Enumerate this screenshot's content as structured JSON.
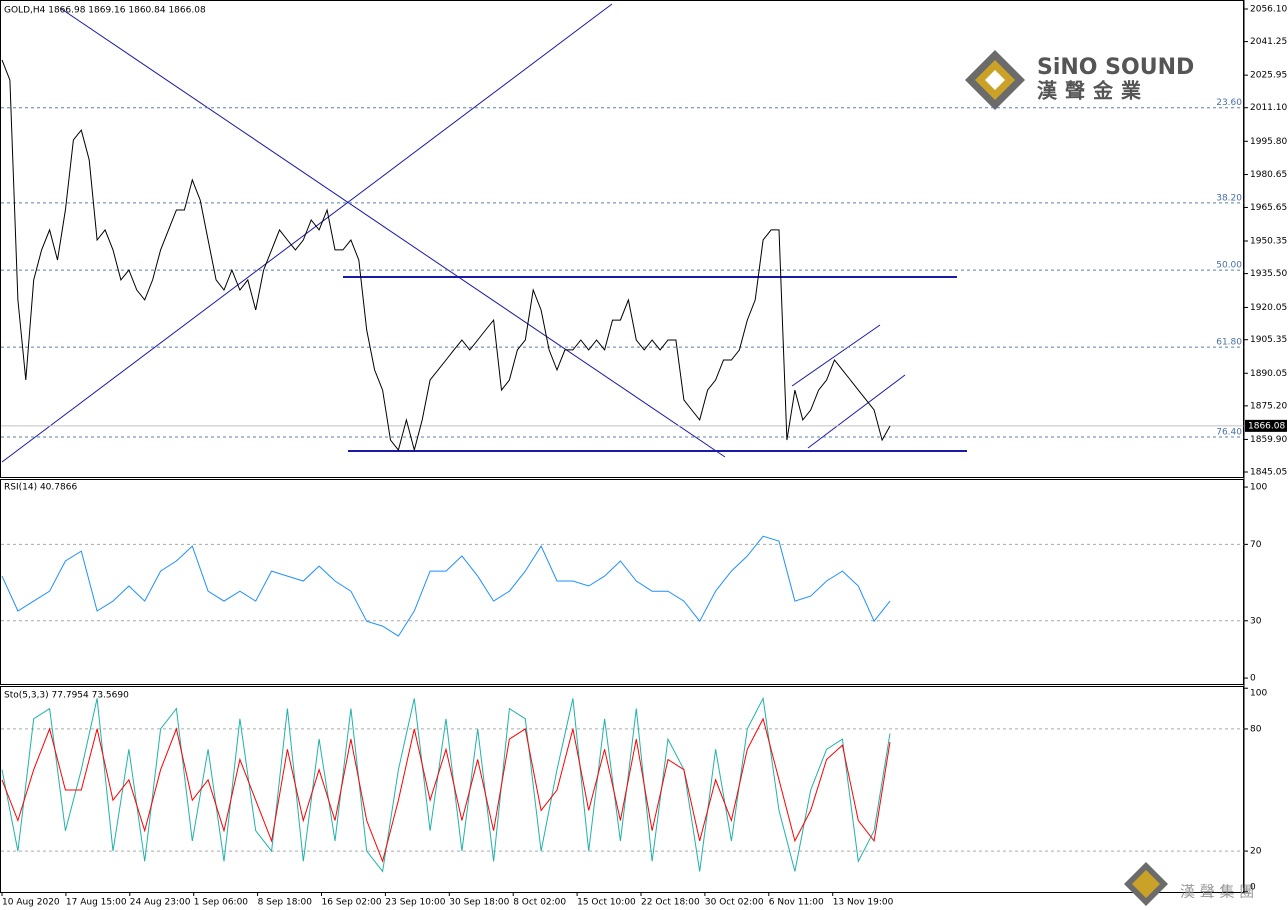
{
  "header": {
    "brand": "SiNO SOUND",
    "brand_cn": "漢聲金業",
    "footer_cn": "漢 聲 集 團"
  },
  "x_axis": {
    "labels": [
      "10 Aug 2020",
      "17 Aug 15:00",
      "24 Aug 23:00",
      "1 Sep 06:00",
      "8 Sep 18:00",
      "16 Sep 02:00",
      "23 Sep 10:00",
      "30 Sep 18:00",
      "8 Oct 02:00",
      "15 Oct 10:00",
      "22 Oct 18:00",
      "30 Oct 02:00",
      "6 Nov 11:00",
      "13 Nov 19:00"
    ]
  },
  "chart_data": [
    {
      "type": "line",
      "title": "GOLD,H4  1866.98 1869.16 1860.84 1866.08",
      "ylim": [
        1842.77,
        2059.75
      ],
      "yticks": [
        {
          "value": 2056.1,
          "label": "2056.10"
        },
        2041.25,
        2025.95,
        {
          "value": 2011.1,
          "label": "2011.10"
        },
        {
          "value": 1995.8,
          "label": "1995.80"
        },
        1980.65,
        1965.65,
        1950.35,
        {
          "value": 1935.5,
          "label": "1935.50"
        },
        1920.05,
        1905.35,
        1890.05,
        {
          "value": 1875.2,
          "label": "1875.20"
        },
        {
          "value": 1859.9,
          "label": "1859.90"
        },
        1845.05
      ],
      "levels": [
        {
          "value": 2011.1,
          "label": "23.60"
        },
        {
          "value": 1967.7,
          "label": "38.20"
        },
        {
          "value": 1937.1,
          "label": "50.00"
        },
        {
          "value": 1902.0,
          "label": "61.80"
        },
        {
          "value": 1861.0,
          "label": "76.40"
        }
      ],
      "last_price": 1866.08,
      "series": [
        {
          "name": "GOLD,H4",
          "color": "#000000",
          "values": [
            2032.9,
            2023.7,
            1923.5,
            1887.0,
            1932.6,
            1946.3,
            1955.4,
            1941.7,
            1964.5,
            1996.4,
            2000.9,
            1987.3,
            1950.8,
            1955.4,
            1946.3,
            1932.6,
            1937.1,
            1928.0,
            1923.5,
            1932.6,
            1946.3,
            1955.4,
            1964.5,
            1964.5,
            1978.2,
            1969.0,
            1950.8,
            1932.6,
            1928.0,
            1937.1,
            1928.0,
            1932.6,
            1918.9,
            1937.1,
            1946.3,
            1955.4,
            1950.8,
            1946.3,
            1950.8,
            1959.9,
            1955.4,
            1964.5,
            1946.3,
            1946.3,
            1950.8,
            1941.7,
            1909.8,
            1891.6,
            1882.4,
            1859.6,
            1855.1,
            1868.8,
            1855.1,
            1868.8,
            1887.0,
            1891.6,
            1896.1,
            1900.7,
            1905.2,
            1900.7,
            1905.2,
            1909.8,
            1914.3,
            1882.4,
            1887.0,
            1900.7,
            1905.2,
            1928.0,
            1918.9,
            1900.7,
            1891.6,
            1900.7,
            1900.7,
            1905.2,
            1900.7,
            1905.2,
            1900.7,
            1914.3,
            1914.3,
            1923.5,
            1905.2,
            1900.7,
            1905.2,
            1900.7,
            1905.2,
            1905.2,
            1877.9,
            1873.3,
            1868.8,
            1882.4,
            1887.0,
            1896.1,
            1896.1,
            1900.7,
            1914.3,
            1923.5,
            1950.8,
            1955.4,
            1955.4,
            1859.6,
            1882.4,
            1868.8,
            1873.3,
            1882.4,
            1887.0,
            1896.1,
            1891.6,
            1887.0,
            1882.4,
            1877.9,
            1873.3,
            1859.6,
            1866.0
          ]
        }
      ]
    },
    {
      "type": "line",
      "title": "RSI(14) 40.7866",
      "ylim": [
        -3.1,
        103.7
      ],
      "yticks": [
        100,
        70,
        30,
        0
      ],
      "levels": [
        70,
        30
      ],
      "series": [
        {
          "name": "RSI(14)",
          "color": "#1e90ff",
          "values": [
            53.4,
            35.1,
            40.3,
            45.5,
            61.3,
            66.5,
            35.1,
            40.3,
            48.2,
            40.3,
            56.0,
            61.3,
            69.1,
            45.5,
            40.3,
            45.5,
            40.3,
            56.0,
            53.4,
            50.8,
            58.6,
            50.8,
            45.5,
            29.8,
            27.2,
            22.0,
            35.1,
            56.0,
            56.0,
            63.9,
            53.4,
            40.3,
            45.5,
            56.0,
            69.1,
            50.8,
            50.8,
            48.2,
            53.4,
            61.3,
            50.8,
            45.5,
            45.5,
            40.3,
            29.8,
            45.5,
            56.0,
            63.9,
            74.3,
            71.7,
            40.3,
            42.9,
            50.8,
            56.0,
            48.2,
            29.8,
            40.3
          ]
        }
      ]
    },
    {
      "type": "line",
      "title": "Sto(5,3,3) 77.7954 73.5690",
      "ylim": [
        -0.1,
        100.6
      ],
      "yticks": [
        100,
        80,
        20,
        0
      ],
      "levels": [
        80,
        20
      ],
      "series": [
        {
          "name": "Sto main",
          "color": "#20b2aa",
          "values": [
            60,
            20,
            85,
            90,
            30,
            60,
            95,
            20,
            70,
            15,
            80,
            90,
            25,
            70,
            15,
            85,
            30,
            20,
            90,
            15,
            75,
            25,
            90,
            20,
            10,
            60,
            95,
            30,
            85,
            20,
            80,
            15,
            90,
            85,
            20,
            60,
            95,
            20,
            85,
            25,
            90,
            15,
            75,
            60,
            10,
            70,
            25,
            80,
            95,
            40,
            10,
            50,
            70,
            75,
            15,
            30,
            77.8
          ]
        },
        {
          "name": "Sto signal",
          "color": "#ff0000",
          "values": [
            55,
            35,
            60,
            80,
            50,
            50,
            80,
            45,
            55,
            30,
            60,
            80,
            45,
            55,
            30,
            65,
            45,
            25,
            70,
            35,
            60,
            35,
            75,
            35,
            15,
            45,
            80,
            45,
            70,
            35,
            65,
            30,
            75,
            80,
            40,
            50,
            80,
            40,
            70,
            35,
            75,
            30,
            65,
            60,
            25,
            55,
            35,
            70,
            85,
            55,
            25,
            40,
            65,
            72,
            35,
            25,
            73.6
          ]
        }
      ]
    }
  ]
}
